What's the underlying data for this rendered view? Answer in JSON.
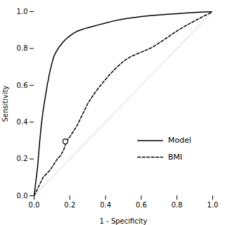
{
  "chart_data": {
    "type": "line",
    "title": "",
    "xlabel": "1 - Specificity",
    "ylabel": "Sensitivity",
    "xlim": [
      0.0,
      1.0
    ],
    "ylim": [
      0.0,
      1.0
    ],
    "xticks": [
      {
        "value": 0.0,
        "label": "0.0"
      },
      {
        "value": 0.2,
        "label": "0.2"
      },
      {
        "value": 0.4,
        "label": "0.4"
      },
      {
        "value": 0.6,
        "label": "0.6"
      },
      {
        "value": 0.8,
        "label": "0.8"
      },
      {
        "value": 1.0,
        "label": "1.0"
      }
    ],
    "yticks": [
      {
        "value": 0.0,
        "label": "0.0"
      },
      {
        "value": 0.2,
        "label": "0.2"
      },
      {
        "value": 0.4,
        "label": "0.4"
      },
      {
        "value": 0.6,
        "label": "0.6"
      },
      {
        "value": 0.8,
        "label": "0.8"
      },
      {
        "value": 1.0,
        "label": "1.0"
      }
    ],
    "grid": false,
    "legend": "lower right",
    "reference_line": {
      "x": [
        0,
        1
      ],
      "y": [
        0,
        1
      ],
      "color": "#c0c0c0"
    },
    "highlight_point": {
      "x": 0.175,
      "y": 0.295
    },
    "series": [
      {
        "name": "Model",
        "color": "#000000",
        "line_style": "solid",
        "x": [
          0.0,
          0.01,
          0.02,
          0.025,
          0.03,
          0.035,
          0.04,
          0.045,
          0.05,
          0.055,
          0.06,
          0.065,
          0.07,
          0.075,
          0.08,
          0.085,
          0.09,
          0.095,
          0.1,
          0.11,
          0.12,
          0.13,
          0.14,
          0.15,
          0.16,
          0.17,
          0.18,
          0.19,
          0.2,
          0.22,
          0.24,
          0.26,
          0.28,
          0.3,
          0.33,
          0.36,
          0.4,
          0.44,
          0.48,
          0.52,
          0.56,
          0.6,
          0.65,
          0.7,
          0.75,
          0.8,
          0.85,
          0.9,
          0.95,
          1.0
        ],
        "values": [
          0.0,
          0.08,
          0.16,
          0.22,
          0.28,
          0.33,
          0.38,
          0.42,
          0.46,
          0.49,
          0.52,
          0.55,
          0.58,
          0.61,
          0.63,
          0.66,
          0.68,
          0.7,
          0.72,
          0.755,
          0.775,
          0.792,
          0.808,
          0.82,
          0.832,
          0.843,
          0.852,
          0.86,
          0.868,
          0.882,
          0.893,
          0.9,
          0.907,
          0.912,
          0.92,
          0.928,
          0.938,
          0.948,
          0.956,
          0.963,
          0.968,
          0.973,
          0.978,
          0.982,
          0.986,
          0.989,
          0.992,
          0.995,
          0.998,
          1.0
        ]
      },
      {
        "name": "BMI",
        "color": "#000000",
        "line_style": "dashed",
        "x": [
          0.0,
          0.01,
          0.02,
          0.03,
          0.04,
          0.05,
          0.07,
          0.09,
          0.11,
          0.13,
          0.15,
          0.17,
          0.18,
          0.2,
          0.22,
          0.24,
          0.26,
          0.28,
          0.3,
          0.33,
          0.36,
          0.39,
          0.42,
          0.46,
          0.5,
          0.54,
          0.58,
          0.62,
          0.66,
          0.7,
          0.75,
          0.8,
          0.85,
          0.9,
          0.95,
          1.0
        ],
        "values": [
          0.0,
          0.02,
          0.04,
          0.06,
          0.08,
          0.1,
          0.12,
          0.14,
          0.17,
          0.2,
          0.22,
          0.26,
          0.295,
          0.32,
          0.35,
          0.38,
          0.42,
          0.46,
          0.5,
          0.545,
          0.585,
          0.62,
          0.655,
          0.695,
          0.73,
          0.755,
          0.772,
          0.788,
          0.805,
          0.83,
          0.862,
          0.895,
          0.924,
          0.95,
          0.975,
          1.0
        ]
      }
    ]
  }
}
